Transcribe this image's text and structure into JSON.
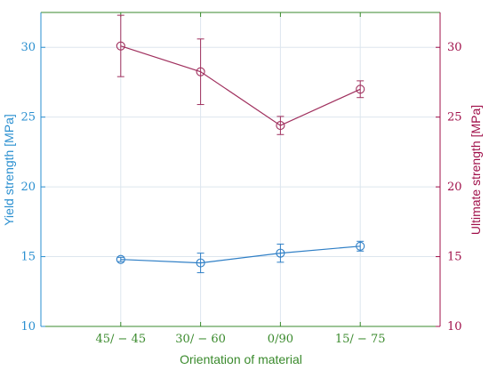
{
  "chart_data": {
    "type": "line",
    "categories": [
      "45/ − 45",
      "30/ − 60",
      "0/90",
      "15/ − 75"
    ],
    "xlabel": "Orientation of material",
    "ylabel": "Yield strength [MPa]",
    "ylabel_right": "Ultimate strength [MPa]",
    "ylim": [
      10,
      32.5
    ],
    "yticks": [
      10,
      15,
      20,
      25,
      30
    ],
    "ylim_right": [
      10,
      32.5
    ],
    "yticks_right": [
      10,
      15,
      20,
      25,
      30
    ],
    "grid": true,
    "series": [
      {
        "axis": "left",
        "color": "#2f7fc6",
        "values": [
          14.8,
          14.55,
          15.25,
          15.75
        ],
        "err_low": [
          0.15,
          0.7,
          0.65,
          0.35
        ],
        "err_high": [
          0.15,
          0.7,
          0.65,
          0.35
        ]
      },
      {
        "axis": "right",
        "color": "#a0305e",
        "values": [
          30.1,
          28.25,
          24.4,
          27.0
        ],
        "err_low": [
          2.2,
          2.35,
          0.65,
          0.6
        ],
        "err_high": [
          2.2,
          2.35,
          0.65,
          0.6
        ]
      }
    ]
  }
}
